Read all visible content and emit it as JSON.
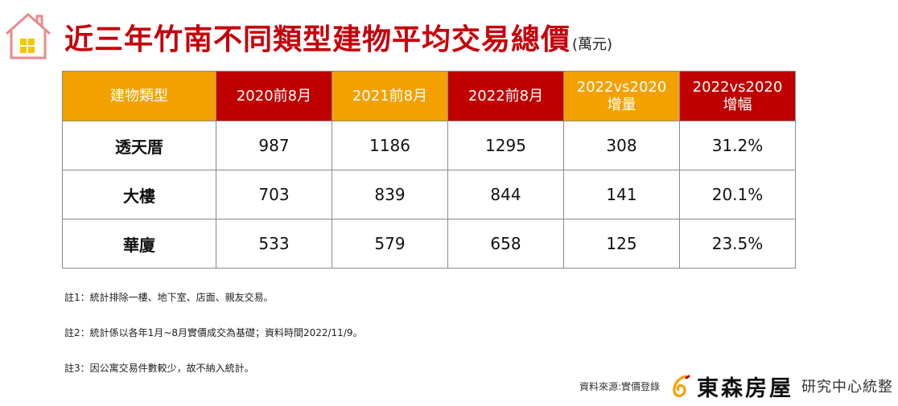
{
  "title": {
    "main": "近三年竹南不同類型建物平均交易總價",
    "unit": "(萬元)"
  },
  "table": {
    "headers": [
      {
        "line1": "建物類型",
        "line2": ""
      },
      {
        "line1": "2020前8月",
        "line2": ""
      },
      {
        "line1": "2021前8月",
        "line2": ""
      },
      {
        "line1": "2022前8月",
        "line2": ""
      },
      {
        "line1": "2022vs2020",
        "line2": "增量"
      },
      {
        "line1": "2022vs2020",
        "line2": "增幅"
      }
    ],
    "rows": [
      [
        "透天厝",
        "987",
        "1186",
        "1295",
        "308",
        "31.2%"
      ],
      [
        "大樓",
        "703",
        "839",
        "844",
        "141",
        "20.1%"
      ],
      [
        "華廈",
        "533",
        "579",
        "658",
        "125",
        "23.5%"
      ]
    ]
  },
  "notes": [
    "註1：統計排除一樓、地下室、店面、親友交易。",
    "註2：統計係以各年1月~8月實價成交為基礎；資料時間2022/11/9。",
    "註3：因公寓交易件數較少，故不納入統計。"
  ],
  "footer": {
    "source": "資料來源:實價登錄",
    "company": "東森房屋",
    "center": "研究中心統整"
  },
  "colors": {
    "title_red": "#c4000b",
    "header_orange": "#f2a100",
    "header_red": "#c00000",
    "value_red": "#d0141e",
    "logo_orange": "#f2a100"
  },
  "icons": {
    "header_icon": "house-icon",
    "logo_icon": "logo-mark-icon"
  }
}
